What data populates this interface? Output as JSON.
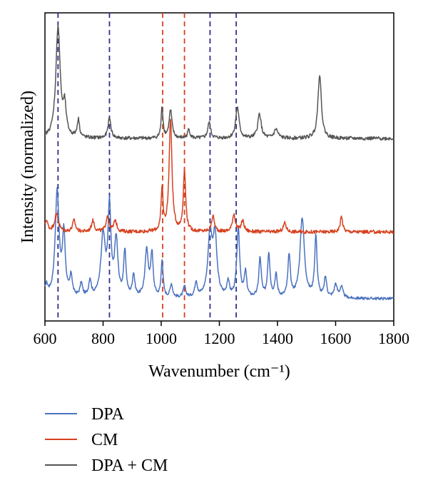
{
  "chart_data": {
    "type": "line",
    "xlabel": "Wavenumber (cm⁻¹)",
    "ylabel": "Intensity (normalized)",
    "xlim": [
      600,
      1800
    ],
    "xticks": [
      "600",
      "800",
      "1000",
      "1200",
      "1400",
      "1600",
      "1800"
    ],
    "yticks": "none",
    "grid": false,
    "legend_position": "below",
    "reference_lines": [
      {
        "x": 645,
        "color": "#2e2e8f",
        "style": "dashed"
      },
      {
        "x": 822,
        "color": "#2e2e8f",
        "style": "dashed"
      },
      {
        "x": 1005,
        "color": "#d6401e",
        "style": "dashed"
      },
      {
        "x": 1080,
        "color": "#d6401e",
        "style": "dashed"
      },
      {
        "x": 1168,
        "color": "#2e2e8f",
        "style": "dashed"
      },
      {
        "x": 1258,
        "color": "#2e2e8f",
        "style": "dashed"
      }
    ],
    "series": [
      {
        "name": "DPA",
        "color": "#4a72c0",
        "offset": 0.0,
        "baseline": 0.18,
        "noise": 0.012,
        "peaks": [
          [
            605,
            0.1,
            6
          ],
          [
            642,
            0.95,
            8
          ],
          [
            665,
            0.55,
            6
          ],
          [
            690,
            0.18,
            5
          ],
          [
            725,
            0.12,
            5
          ],
          [
            755,
            0.15,
            5
          ],
          [
            800,
            0.55,
            9
          ],
          [
            822,
            0.78,
            6
          ],
          [
            845,
            0.5,
            7
          ],
          [
            875,
            0.4,
            5
          ],
          [
            905,
            0.2,
            5
          ],
          [
            950,
            0.42,
            7
          ],
          [
            968,
            0.38,
            5
          ],
          [
            1003,
            0.34,
            4
          ],
          [
            1035,
            0.12,
            5
          ],
          [
            1080,
            0.1,
            5
          ],
          [
            1120,
            0.14,
            5
          ],
          [
            1168,
            0.55,
            9
          ],
          [
            1185,
            0.52,
            8
          ],
          [
            1230,
            0.14,
            5
          ],
          [
            1265,
            0.62,
            6
          ],
          [
            1290,
            0.22,
            5
          ],
          [
            1340,
            0.35,
            5
          ],
          [
            1370,
            0.4,
            5
          ],
          [
            1395,
            0.2,
            5
          ],
          [
            1440,
            0.38,
            5
          ],
          [
            1485,
            0.72,
            9
          ],
          [
            1532,
            0.55,
            5
          ],
          [
            1565,
            0.18,
            5
          ],
          [
            1600,
            0.12,
            6
          ],
          [
            1620,
            0.1,
            6
          ]
        ]
      },
      {
        "name": "CM",
        "color": "#d6401e",
        "offset": 0.72,
        "baseline": 0.06,
        "noise": 0.016,
        "peaks": [
          [
            605,
            0.1,
            6
          ],
          [
            640,
            0.16,
            8
          ],
          [
            700,
            0.1,
            6
          ],
          [
            765,
            0.1,
            6
          ],
          [
            815,
            0.14,
            6
          ],
          [
            842,
            0.1,
            6
          ],
          [
            1003,
            0.38,
            4
          ],
          [
            1032,
            1.0,
            6
          ],
          [
            1080,
            0.55,
            5
          ],
          [
            1178,
            0.14,
            6
          ],
          [
            1250,
            0.16,
            6
          ],
          [
            1280,
            0.1,
            6
          ],
          [
            1425,
            0.08,
            6
          ],
          [
            1620,
            0.14,
            5
          ]
        ]
      },
      {
        "name": "DPA + CM",
        "color": "#555555",
        "offset": 1.62,
        "baseline": 0.0,
        "noise": 0.016,
        "peaks": [
          [
            645,
            1.0,
            9
          ],
          [
            668,
            0.25,
            6
          ],
          [
            715,
            0.16,
            5
          ],
          [
            822,
            0.18,
            6
          ],
          [
            1003,
            0.28,
            4
          ],
          [
            1032,
            0.25,
            6
          ],
          [
            1095,
            0.08,
            5
          ],
          [
            1165,
            0.14,
            6
          ],
          [
            1262,
            0.28,
            7
          ],
          [
            1338,
            0.22,
            7
          ],
          [
            1395,
            0.08,
            8
          ],
          [
            1545,
            0.58,
            7
          ]
        ]
      }
    ]
  }
}
